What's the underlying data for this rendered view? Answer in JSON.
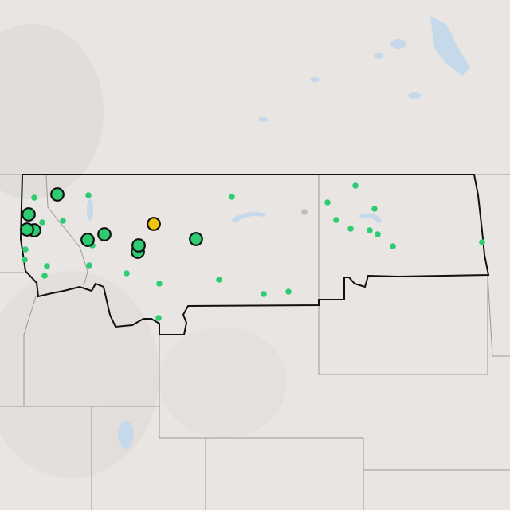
{
  "map": {
    "basemap": "terrain-light",
    "colors": {
      "land": "#e9e5e3",
      "water": "#c5d9ea",
      "state_line": "#9a9a9a",
      "highlight_border": "#111111",
      "marker_green": "#2ecc71",
      "marker_yellow": "#f1c40f",
      "marker_gray": "#bdbdbd"
    },
    "markers": {
      "large_green_count": 9,
      "large_yellow_count": 1,
      "small_green_count": 26,
      "small_gray_count": 1
    }
  }
}
